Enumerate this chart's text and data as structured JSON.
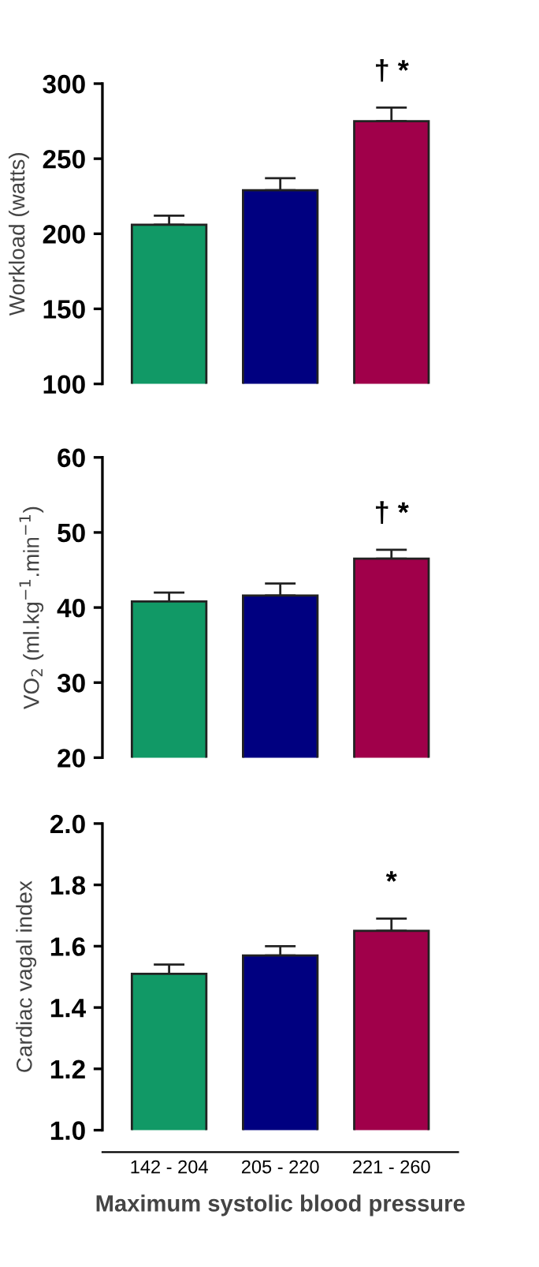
{
  "chart_data": [
    {
      "type": "bar",
      "ylabel": "Workload (watts)",
      "categories": [
        null,
        null,
        null
      ],
      "tick_labels": "y",
      "series": [
        {
          "colors": [
            "#119966",
            "#000080",
            "#a0004a"
          ],
          "values": [
            206,
            229,
            275
          ],
          "errors": [
            [
              206,
              212
            ],
            [
              229,
              237
            ],
            [
              275,
              284
            ]
          ]
        }
      ],
      "ylim": [
        100,
        300
      ],
      "yticks": [
        100,
        150,
        200,
        250,
        300
      ],
      "grid": false,
      "annotations": [
        "† *"
      ]
    },
    {
      "type": "bar",
      "ylabel": "VO$_{2}$ (ml.kg$^{−1}$.min$^{−1}$)",
      "categories": [
        null,
        null,
        null
      ],
      "tick_labels": "y",
      "series": [
        {
          "colors": [
            "#119966",
            "#000080",
            "#a0004a"
          ],
          "values": [
            40.8,
            41.6,
            46.5
          ],
          "errors": [
            [
              40.8,
              42.0
            ],
            [
              41.6,
              43.2
            ],
            [
              46.5,
              47.7
            ]
          ]
        }
      ],
      "ylim": [
        20,
        60
      ],
      "yticks": [
        20,
        30,
        40,
        50,
        60
      ],
      "grid": false,
      "annotations": [
        "† *"
      ]
    },
    {
      "type": "bar",
      "ylabel": "Cardiac vagal index",
      "xlabel": "Maximum systolic blood pressure",
      "categories": [
        "142 - 204",
        "205 - 220",
        "221 - 260"
      ],
      "series": [
        {
          "colors": [
            "#119966",
            "#000080",
            "#a0004a"
          ],
          "values": [
            1.51,
            1.57,
            1.65
          ],
          "errors": [
            [
              1.51,
              1.54
            ],
            [
              1.57,
              1.6
            ],
            [
              1.65,
              1.69
            ]
          ]
        }
      ],
      "ylim": [
        1.0,
        2.0
      ],
      "yticks": [
        {
          "value": 1.0,
          "label": "1.0"
        },
        1.2,
        1.4,
        1.6,
        1.8,
        {
          "value": 2.0,
          "label": "2.0"
        }
      ],
      "grid": false,
      "annotations": [
        "*"
      ]
    }
  ]
}
